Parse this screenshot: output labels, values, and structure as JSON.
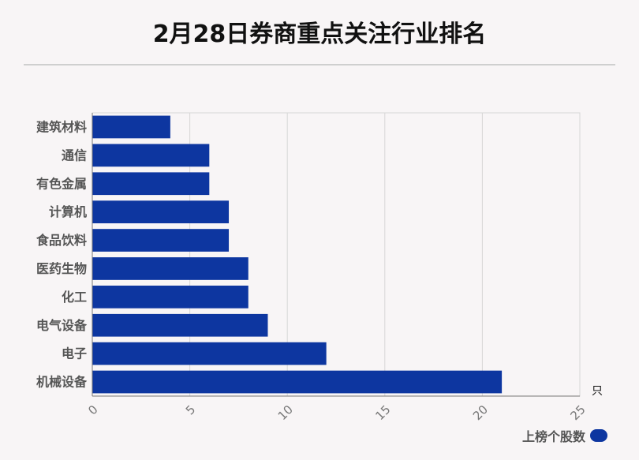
{
  "title": "2月28日券商重点关注行业排名",
  "legend": {
    "label": "上榜个股数",
    "color": "#0d36a0"
  },
  "chart_data": {
    "type": "bar",
    "orientation": "horizontal",
    "categories": [
      "建筑材料",
      "通信",
      "有色金属",
      "计算机",
      "食品饮料",
      "医药生物",
      "化工",
      "电气设备",
      "电子",
      "机械设备"
    ],
    "series": [
      {
        "name": "上榜个股数",
        "values": [
          4,
          6,
          6,
          7,
          7,
          8,
          8,
          9,
          12,
          21
        ],
        "color": "#0d36a0"
      }
    ],
    "xlim": [
      0,
      25
    ],
    "xticks": [
      "0",
      "5",
      "10",
      "15",
      "20",
      "25"
    ],
    "unit": "只",
    "grid": true,
    "legend_position": "bottom-right"
  }
}
